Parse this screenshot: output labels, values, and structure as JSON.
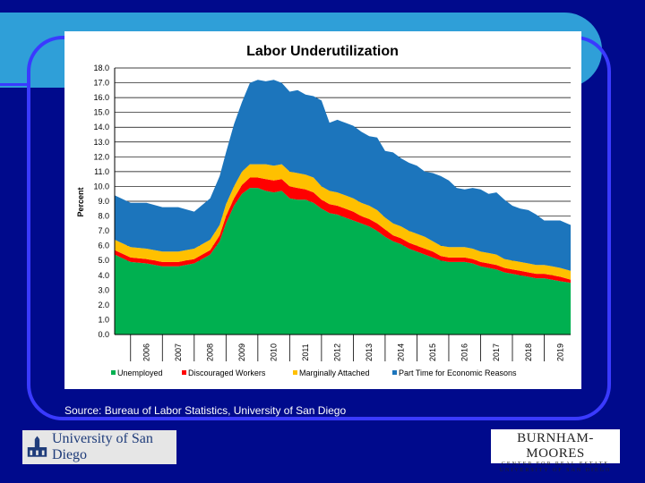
{
  "source": "Source:  Bureau of Labor Statistics, University of San Diego",
  "logos": {
    "usd": "University of San Diego",
    "burnham_moores": "BURNHAM-MOORES",
    "burnham_moores_sub1": "CENTER FOR REAL ESTATE",
    "burnham_moores_sub2": "UNIVERSITY OF SAN DIEGO"
  },
  "chart_data": {
    "type": "area",
    "stacked": true,
    "title": "Labor Underutilization",
    "ylabel": "Percent",
    "xlabel": "",
    "ylim": [
      0,
      18
    ],
    "yticks": [
      "0.0",
      "1.0",
      "2.0",
      "3.0",
      "4.0",
      "5.0",
      "6.0",
      "7.0",
      "8.0",
      "9.0",
      "10.0",
      "11.0",
      "12.0",
      "13.0",
      "14.0",
      "15.0",
      "16.0",
      "17.0",
      "18.0"
    ],
    "x_tick_labels": [
      "2006",
      "2007",
      "2008",
      "2009",
      "2010",
      "2011",
      "2012",
      "2013",
      "2014",
      "2015",
      "2016",
      "2017",
      "2018",
      "2019"
    ],
    "x_start": 2005.5,
    "x_end": 2019.83,
    "grid": true,
    "legend_position": "bottom",
    "x": [
      2005.5,
      2006.0,
      2006.5,
      2007.0,
      2007.5,
      2008.0,
      2008.5,
      2008.8,
      2009.0,
      2009.25,
      2009.5,
      2009.75,
      2010.0,
      2010.25,
      2010.5,
      2010.75,
      2011.0,
      2011.25,
      2011.5,
      2011.75,
      2012.0,
      2012.25,
      2012.5,
      2012.75,
      2013.0,
      2013.25,
      2013.5,
      2013.75,
      2014.0,
      2014.25,
      2014.5,
      2014.75,
      2015.0,
      2015.25,
      2015.5,
      2015.75,
      2016.0,
      2016.25,
      2016.5,
      2016.75,
      2017.0,
      2017.25,
      2017.5,
      2017.75,
      2018.0,
      2018.25,
      2018.5,
      2018.75,
      2019.0,
      2019.25,
      2019.5,
      2019.83
    ],
    "series": [
      {
        "name": "Unemployed",
        "color": "#00b050",
        "values": [
          5.4,
          4.9,
          4.8,
          4.6,
          4.6,
          4.8,
          5.4,
          6.3,
          7.5,
          8.7,
          9.5,
          9.9,
          9.9,
          9.7,
          9.6,
          9.7,
          9.2,
          9.1,
          9.1,
          8.9,
          8.5,
          8.2,
          8.1,
          7.9,
          7.7,
          7.5,
          7.3,
          7.0,
          6.6,
          6.3,
          6.1,
          5.8,
          5.6,
          5.4,
          5.2,
          5.0,
          4.9,
          4.9,
          4.9,
          4.8,
          4.6,
          4.5,
          4.4,
          4.2,
          4.1,
          4.0,
          3.9,
          3.8,
          3.8,
          3.7,
          3.6,
          3.5
        ]
      },
      {
        "name": "Discouraged Workers",
        "color": "#ff0000",
        "values": [
          0.3,
          0.3,
          0.3,
          0.3,
          0.3,
          0.3,
          0.3,
          0.4,
          0.5,
          0.5,
          0.6,
          0.7,
          0.7,
          0.8,
          0.8,
          0.8,
          0.8,
          0.8,
          0.7,
          0.7,
          0.6,
          0.6,
          0.6,
          0.6,
          0.6,
          0.5,
          0.5,
          0.5,
          0.5,
          0.4,
          0.4,
          0.4,
          0.4,
          0.4,
          0.4,
          0.3,
          0.3,
          0.3,
          0.3,
          0.3,
          0.3,
          0.3,
          0.3,
          0.3,
          0.3,
          0.3,
          0.3,
          0.3,
          0.3,
          0.3,
          0.3,
          0.2
        ]
      },
      {
        "name": "Marginally Attached",
        "color": "#ffc000",
        "values": [
          0.7,
          0.7,
          0.7,
          0.7,
          0.7,
          0.7,
          0.7,
          0.7,
          0.8,
          0.8,
          0.9,
          0.9,
          0.9,
          1.0,
          1.0,
          1.0,
          1.0,
          1.0,
          1.0,
          1.0,
          0.9,
          0.9,
          0.9,
          0.9,
          0.9,
          0.9,
          0.9,
          0.9,
          0.8,
          0.8,
          0.8,
          0.8,
          0.8,
          0.8,
          0.7,
          0.7,
          0.7,
          0.7,
          0.7,
          0.7,
          0.7,
          0.7,
          0.7,
          0.6,
          0.6,
          0.6,
          0.6,
          0.6,
          0.6,
          0.6,
          0.6,
          0.6
        ]
      },
      {
        "name": "Part Time for Economic Reasons",
        "color": "#1c75bc",
        "values": [
          3.0,
          3.0,
          3.1,
          3.0,
          3.0,
          2.5,
          2.8,
          3.3,
          3.5,
          4.2,
          4.7,
          5.5,
          5.7,
          5.6,
          5.8,
          5.5,
          5.4,
          5.6,
          5.4,
          5.5,
          5.8,
          4.6,
          4.9,
          4.9,
          4.9,
          4.8,
          4.7,
          4.9,
          4.5,
          4.8,
          4.6,
          4.6,
          4.6,
          4.4,
          4.6,
          4.7,
          4.5,
          4.0,
          3.9,
          4.1,
          4.2,
          4.0,
          4.2,
          4.0,
          3.7,
          3.6,
          3.6,
          3.4,
          3.0,
          3.1,
          3.2,
          3.1
        ]
      }
    ]
  }
}
